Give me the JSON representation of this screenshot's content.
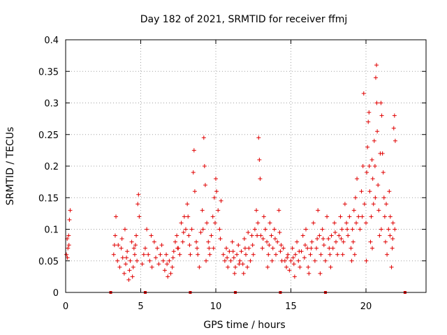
{
  "chart_data": {
    "type": "scatter",
    "title": "Day 182 of 2021, SRMTID for receiver ffmj",
    "xlabel": "GPS time / hours",
    "ylabel": "SRMTID / TECUs",
    "xlim": [
      0,
      24
    ],
    "ylim": [
      0,
      0.4
    ],
    "x_ticks": [
      0,
      5,
      10,
      15,
      20
    ],
    "y_ticks": [
      0,
      0.05,
      0.1,
      0.15,
      0.2,
      0.25,
      0.3,
      0.35,
      0.4
    ],
    "x_tick_labels": [
      "0",
      "5",
      "10",
      "15",
      "20"
    ],
    "y_tick_labels": [
      "0",
      "0.05",
      "0.1",
      "0.15",
      "0.2",
      "0.25",
      "0.3",
      "0.35",
      "0.4"
    ],
    "grid": true,
    "marker_color": "#e00000",
    "series": [
      {
        "name": "SRMTID",
        "marker": "plus",
        "points": [
          [
            0.05,
            0.06
          ],
          [
            0.1,
            0.085
          ],
          [
            0.15,
            0.07
          ],
          [
            0.2,
            0.09
          ],
          [
            0.25,
            0.115
          ],
          [
            0.3,
            0.13
          ],
          [
            0.12,
            0.055
          ],
          [
            0.22,
            0.075
          ],
          [
            3.2,
            0.06
          ],
          [
            3.3,
            0.09
          ],
          [
            3.35,
            0.12
          ],
          [
            3.45,
            0.05
          ],
          [
            3.6,
            0.04
          ],
          [
            3.7,
            0.07
          ],
          [
            3.8,
            0.055
          ],
          [
            3.9,
            0.03
          ],
          [
            4.0,
            0.045
          ],
          [
            4.1,
            0.065
          ],
          [
            4.2,
            0.02
          ],
          [
            4.3,
            0.05
          ],
          [
            4.4,
            0.08
          ],
          [
            4.5,
            0.04
          ],
          [
            4.6,
            0.06
          ],
          [
            4.7,
            0.09
          ],
          [
            4.8,
            0.14
          ],
          [
            4.85,
            0.155
          ],
          [
            4.9,
            0.12
          ],
          [
            3.5,
            0.075
          ],
          [
            3.95,
            0.1
          ],
          [
            4.25,
            0.035
          ],
          [
            4.55,
            0.07
          ],
          [
            4.75,
            0.05
          ],
          [
            5.1,
            0.045
          ],
          [
            5.3,
            0.07
          ],
          [
            5.4,
            0.1
          ],
          [
            5.5,
            0.06
          ],
          [
            5.6,
            0.05
          ],
          [
            5.75,
            0.04
          ],
          [
            5.9,
            0.08
          ],
          [
            6.0,
            0.055
          ],
          [
            6.2,
            0.045
          ],
          [
            6.4,
            0.075
          ],
          [
            6.6,
            0.035
          ],
          [
            6.7,
            0.06
          ],
          [
            6.8,
            0.025
          ],
          [
            6.9,
            0.05
          ],
          [
            7.1,
            0.04
          ],
          [
            7.2,
            0.065
          ],
          [
            7.4,
            0.09
          ],
          [
            7.5,
            0.07
          ],
          [
            7.7,
            0.11
          ],
          [
            7.8,
            0.08
          ],
          [
            7.9,
            0.12
          ],
          [
            8.0,
            0.1
          ],
          [
            8.1,
            0.14
          ],
          [
            8.2,
            0.09
          ],
          [
            8.3,
            0.06
          ],
          [
            8.4,
            0.1
          ],
          [
            8.5,
            0.19
          ],
          [
            8.55,
            0.225
          ],
          [
            8.6,
            0.16
          ],
          [
            8.7,
            0.08
          ],
          [
            8.8,
            0.06
          ],
          [
            8.9,
            0.04
          ],
          [
            9.0,
            0.095
          ],
          [
            9.1,
            0.13
          ],
          [
            9.2,
            0.245
          ],
          [
            9.25,
            0.2
          ],
          [
            9.3,
            0.17
          ],
          [
            9.4,
            0.11
          ],
          [
            9.5,
            0.08
          ],
          [
            9.6,
            0.06
          ],
          [
            9.7,
            0.09
          ],
          [
            9.8,
            0.12
          ],
          [
            9.9,
            0.15
          ],
          [
            10.0,
            0.18
          ],
          [
            10.05,
            0.16
          ],
          [
            10.15,
            0.13
          ],
          [
            10.25,
            0.1
          ],
          [
            10.35,
            0.145
          ],
          [
            6.1,
            0.07
          ],
          [
            6.5,
            0.05
          ],
          [
            7.0,
            0.03
          ],
          [
            7.3,
            0.08
          ],
          [
            7.6,
            0.06
          ],
          [
            8.15,
            0.12
          ],
          [
            9.35,
            0.05
          ],
          [
            9.85,
            0.07
          ],
          [
            10.5,
            0.06
          ],
          [
            10.6,
            0.05
          ],
          [
            10.7,
            0.07
          ],
          [
            10.8,
            0.04
          ],
          [
            10.9,
            0.065
          ],
          [
            11.0,
            0.05
          ],
          [
            11.1,
            0.08
          ],
          [
            11.2,
            0.055
          ],
          [
            11.3,
            0.04
          ],
          [
            11.4,
            0.06
          ],
          [
            11.5,
            0.075
          ],
          [
            11.6,
            0.05
          ],
          [
            11.7,
            0.065
          ],
          [
            11.8,
            0.045
          ],
          [
            11.9,
            0.085
          ],
          [
            12.0,
            0.06
          ],
          [
            12.1,
            0.04
          ],
          [
            12.2,
            0.07
          ],
          [
            12.3,
            0.05
          ],
          [
            12.4,
            0.09
          ],
          [
            12.5,
            0.06
          ],
          [
            12.6,
            0.1
          ],
          [
            12.7,
            0.13
          ],
          [
            12.8,
            0.11
          ],
          [
            12.85,
            0.245
          ],
          [
            12.9,
            0.21
          ],
          [
            12.95,
            0.18
          ],
          [
            13.0,
            0.09
          ],
          [
            13.1,
            0.07
          ],
          [
            13.2,
            0.12
          ],
          [
            13.3,
            0.1
          ],
          [
            13.4,
            0.08
          ],
          [
            13.5,
            0.06
          ],
          [
            13.6,
            0.11
          ],
          [
            13.7,
            0.09
          ],
          [
            13.8,
            0.07
          ],
          [
            13.9,
            0.1
          ],
          [
            14.0,
            0.06
          ],
          [
            14.1,
            0.08
          ],
          [
            14.2,
            0.13
          ],
          [
            14.3,
            0.065
          ],
          [
            14.4,
            0.05
          ],
          [
            11.25,
            0.03
          ],
          [
            11.85,
            0.03
          ],
          [
            12.15,
            0.095
          ],
          [
            13.45,
            0.04
          ],
          [
            13.75,
            0.05
          ],
          [
            14.25,
            0.095
          ],
          [
            14.5,
            0.07
          ],
          [
            14.6,
            0.05
          ],
          [
            14.7,
            0.04
          ],
          [
            14.8,
            0.06
          ],
          [
            14.9,
            0.035
          ],
          [
            15.0,
            0.05
          ],
          [
            15.1,
            0.07
          ],
          [
            15.2,
            0.045
          ],
          [
            15.3,
            0.06
          ],
          [
            15.4,
            0.08
          ],
          [
            15.5,
            0.05
          ],
          [
            15.6,
            0.04
          ],
          [
            15.7,
            0.065
          ],
          [
            15.8,
            0.09
          ],
          [
            15.9,
            0.055
          ],
          [
            16.0,
            0.1
          ],
          [
            16.1,
            0.07
          ],
          [
            16.2,
            0.03
          ],
          [
            16.3,
            0.06
          ],
          [
            16.4,
            0.08
          ],
          [
            16.5,
            0.11
          ],
          [
            16.6,
            0.05
          ],
          [
            16.7,
            0.07
          ],
          [
            16.8,
            0.13
          ],
          [
            16.9,
            0.09
          ],
          [
            17.0,
            0.06
          ],
          [
            17.1,
            0.1
          ],
          [
            17.2,
            0.075
          ],
          [
            17.3,
            0.05
          ],
          [
            17.4,
            0.12
          ],
          [
            17.5,
            0.085
          ],
          [
            17.6,
            0.06
          ],
          [
            17.7,
            0.09
          ],
          [
            17.8,
            0.07
          ],
          [
            17.9,
            0.11
          ],
          [
            18.0,
            0.08
          ],
          [
            18.1,
            0.06
          ],
          [
            18.2,
            0.09
          ],
          [
            18.3,
            0.12
          ],
          [
            18.4,
            0.1
          ],
          [
            18.5,
            0.08
          ],
          [
            18.6,
            0.14
          ],
          [
            18.7,
            0.11
          ],
          [
            18.8,
            0.09
          ],
          [
            18.9,
            0.12
          ],
          [
            19.0,
            0.07
          ],
          [
            19.1,
            0.1
          ],
          [
            19.2,
            0.13
          ],
          [
            15.25,
            0.025
          ],
          [
            16.15,
            0.04
          ],
          [
            16.95,
            0.03
          ],
          [
            17.65,
            0.04
          ],
          [
            18.45,
            0.06
          ],
          [
            19.05,
            0.05
          ],
          [
            19.15,
            0.08
          ],
          [
            19.25,
            0.06
          ],
          [
            19.3,
            0.15
          ],
          [
            19.4,
            0.18
          ],
          [
            19.5,
            0.12
          ],
          [
            19.6,
            0.1
          ],
          [
            19.7,
            0.16
          ],
          [
            19.8,
            0.2
          ],
          [
            19.85,
            0.315
          ],
          [
            19.9,
            0.14
          ],
          [
            20.0,
            0.11
          ],
          [
            20.05,
            0.19
          ],
          [
            20.1,
            0.23
          ],
          [
            20.15,
            0.27
          ],
          [
            20.2,
            0.285
          ],
          [
            20.25,
            0.16
          ],
          [
            20.3,
            0.08
          ],
          [
            20.35,
            0.12
          ],
          [
            20.4,
            0.21
          ],
          [
            20.45,
            0.18
          ],
          [
            20.5,
            0.14
          ],
          [
            20.55,
            0.24
          ],
          [
            20.6,
            0.2
          ],
          [
            20.65,
            0.34
          ],
          [
            20.7,
            0.36
          ],
          [
            20.72,
            0.3
          ],
          [
            20.75,
            0.255
          ],
          [
            20.8,
            0.17
          ],
          [
            20.85,
            0.13
          ],
          [
            20.9,
            0.09
          ],
          [
            21.0,
            0.3
          ],
          [
            21.05,
            0.28
          ],
          [
            21.1,
            0.22
          ],
          [
            21.15,
            0.19
          ],
          [
            21.2,
            0.15
          ],
          [
            21.25,
            0.12
          ],
          [
            21.3,
            0.08
          ],
          [
            21.4,
            0.06
          ],
          [
            21.5,
            0.1
          ],
          [
            21.6,
            0.09
          ],
          [
            21.7,
            0.04
          ],
          [
            21.75,
            0.07
          ],
          [
            21.8,
            0.11
          ],
          [
            21.85,
            0.26
          ],
          [
            21.9,
            0.28
          ],
          [
            21.95,
            0.24
          ],
          [
            20.02,
            0.05
          ],
          [
            20.42,
            0.07
          ],
          [
            21.02,
            0.1
          ],
          [
            21.62,
            0.12
          ],
          [
            3.25,
            0.075
          ],
          [
            3.75,
            0.085
          ],
          [
            4.05,
            0.055
          ],
          [
            4.45,
            0.025
          ],
          [
            4.65,
            0.075
          ],
          [
            5.2,
            0.06
          ],
          [
            5.7,
            0.09
          ],
          [
            6.3,
            0.06
          ],
          [
            6.75,
            0.045
          ],
          [
            7.15,
            0.055
          ],
          [
            7.45,
            0.07
          ],
          [
            7.85,
            0.095
          ],
          [
            8.25,
            0.075
          ],
          [
            8.75,
            0.07
          ],
          [
            9.15,
            0.1
          ],
          [
            9.55,
            0.07
          ],
          [
            9.95,
            0.11
          ],
          [
            10.3,
            0.085
          ],
          [
            10.75,
            0.055
          ],
          [
            11.15,
            0.065
          ],
          [
            11.55,
            0.045
          ],
          [
            11.95,
            0.07
          ],
          [
            12.45,
            0.075
          ],
          [
            12.75,
            0.09
          ],
          [
            13.15,
            0.085
          ],
          [
            13.55,
            0.075
          ],
          [
            13.95,
            0.085
          ],
          [
            14.35,
            0.075
          ],
          [
            14.75,
            0.055
          ],
          [
            15.15,
            0.055
          ],
          [
            15.55,
            0.065
          ],
          [
            15.95,
            0.075
          ],
          [
            16.35,
            0.07
          ],
          [
            16.75,
            0.085
          ],
          [
            17.15,
            0.085
          ],
          [
            17.55,
            0.07
          ],
          [
            17.95,
            0.095
          ],
          [
            18.35,
            0.085
          ],
          [
            18.75,
            0.1
          ],
          [
            19.35,
            0.11
          ],
          [
            19.75,
            0.12
          ],
          [
            20.22,
            0.2
          ],
          [
            20.62,
            0.15
          ],
          [
            20.95,
            0.22
          ],
          [
            21.35,
            0.14
          ],
          [
            21.55,
            0.16
          ],
          [
            21.78,
            0.085
          ],
          [
            21.92,
            0.1
          ]
        ]
      }
    ],
    "gap_markers_x": [
      3.0,
      5.3,
      8.3,
      11.3,
      14.3,
      17.3,
      22.6
    ]
  }
}
